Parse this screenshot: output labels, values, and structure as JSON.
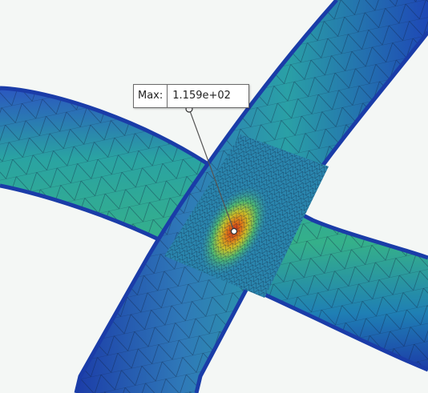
{
  "probe": {
    "label": "Max:",
    "value": "1.159e+02"
  },
  "colors": {
    "background": "#f4f7f5",
    "outer_edge": "#1f46b8",
    "mid_teal": "#2aa59a",
    "peak_red": "#d03418",
    "mesh_lines": "#0d1d3a"
  }
}
